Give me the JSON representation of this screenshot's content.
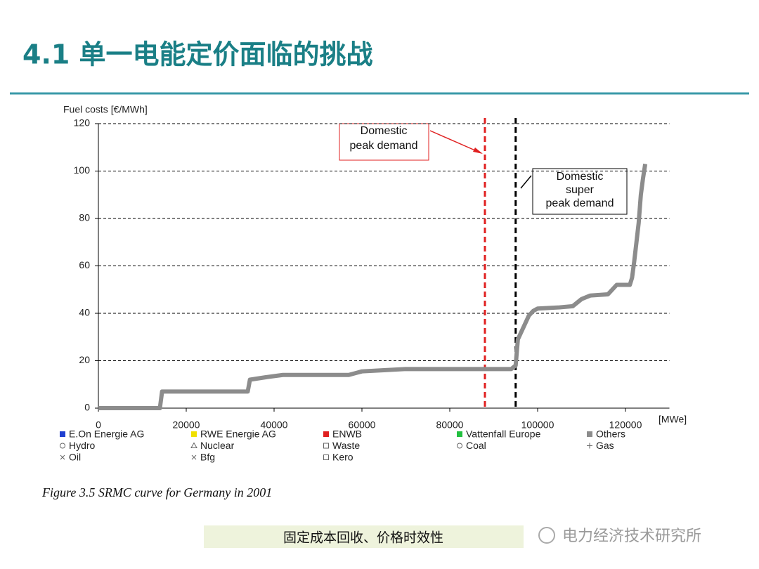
{
  "header": {
    "title": "4.1 单一电能定价面临的挑战"
  },
  "chart_data": {
    "type": "line",
    "y_label": "Fuel costs [€/MWh]",
    "x_label": "[MWe]",
    "x": [
      0,
      5000,
      14000,
      14500,
      22000,
      34000,
      34500,
      38000,
      42000,
      57000,
      60000,
      65000,
      70000,
      80000,
      94000,
      95000,
      95500,
      96000,
      97000,
      98000,
      99000,
      100000,
      105000,
      108000,
      110000,
      112000,
      116000,
      117000,
      118000,
      121000,
      121500,
      122000,
      122500,
      123000,
      123500,
      124000,
      124500
    ],
    "values": [
      0,
      0,
      0,
      7,
      7,
      7,
      12,
      13,
      14,
      14,
      15.5,
      16,
      16.5,
      16.5,
      16.5,
      18,
      29,
      31,
      35,
      39,
      41,
      42,
      42.5,
      43,
      46,
      47.5,
      48,
      50,
      52,
      52,
      55,
      62,
      70,
      78,
      90,
      97,
      103
    ],
    "color": "#8c8c8c",
    "xlim": [
      0,
      130000
    ],
    "xticks": [
      0,
      20000,
      40000,
      60000,
      80000,
      100000,
      120000
    ],
    "ylim": [
      0,
      120
    ],
    "yticks": [
      0,
      20,
      40,
      60,
      80,
      100,
      120
    ],
    "grid": true,
    "vlines": [
      {
        "x": 88000,
        "color": "#e02020"
      },
      {
        "x": 95000,
        "color": "#000000"
      }
    ],
    "annotations": [
      {
        "lines": [
          "Domestic",
          "peak demand"
        ]
      },
      {
        "lines": [
          "Domestic",
          "super",
          "peak demand"
        ]
      }
    ],
    "legend": [
      {
        "label": "E.On Energie AG",
        "color": "#1f3fd0",
        "symbol": "square"
      },
      {
        "label": "RWE Energie AG",
        "color": "#f0e000",
        "symbol": "square"
      },
      {
        "label": "ENWB",
        "color": "#e02020",
        "symbol": "square"
      },
      {
        "label": "Vattenfall Europe",
        "color": "#22c040",
        "symbol": "square"
      },
      {
        "label": "Others",
        "color": "#8c8c8c",
        "symbol": "square"
      },
      {
        "label": "Hydro",
        "color": "#666666",
        "symbol": "circle"
      },
      {
        "label": "Nuclear",
        "color": "#666666",
        "symbol": "triangle"
      },
      {
        "label": "Waste",
        "color": "#666666",
        "symbol": "box"
      },
      {
        "label": "Coal",
        "color": "#666666",
        "symbol": "circle"
      },
      {
        "label": "Gas",
        "color": "#666666",
        "symbol": "plus"
      },
      {
        "label": "Oil",
        "color": "#666666",
        "symbol": "cross"
      },
      {
        "label": "Bfg",
        "color": "#666666",
        "symbol": "cross"
      },
      {
        "label": "Kero",
        "color": "#666666",
        "symbol": "box"
      }
    ],
    "caption": "Figure 3.5  SRMC curve for Germany in 2001"
  },
  "footer": {
    "note": "固定成本回收、价格时效性",
    "watermark": "电力经济技术研究所"
  }
}
